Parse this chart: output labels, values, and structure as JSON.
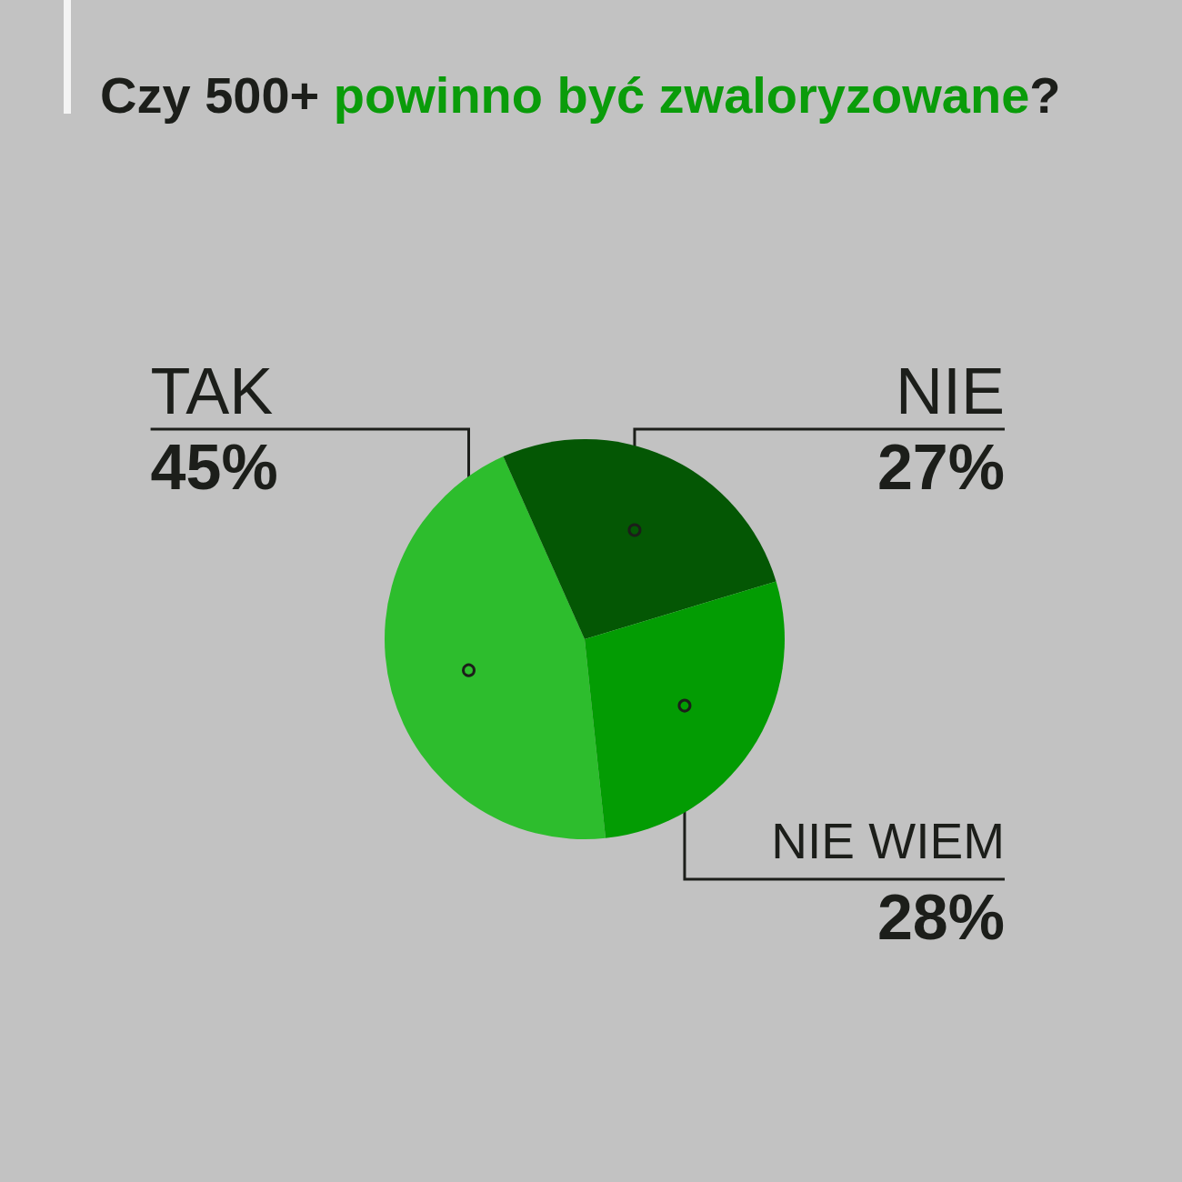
{
  "chart_data": {
    "type": "pie",
    "title": "Czy 500+ powinno być zwaloryzowane?",
    "categories": [
      "TAK",
      "NIE",
      "NIE WIEM"
    ],
    "values": [
      45,
      27,
      28
    ],
    "colors": [
      "#2dbd2d",
      "#045704",
      "#039c03"
    ],
    "value_labels": [
      "45%",
      "27%",
      "28%"
    ]
  }
}
